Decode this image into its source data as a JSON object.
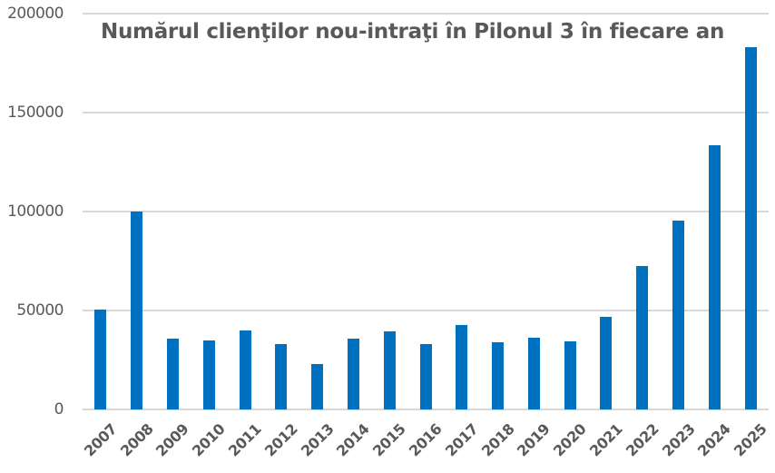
{
  "chart_data": {
    "type": "bar",
    "title": "Numărul clienţilor nou-intraţi în Pilonul 3 în fiecare an",
    "xlabel": "",
    "ylabel": "",
    "ylim": [
      0,
      200000
    ],
    "yticks": [
      "0",
      "50000",
      "100000",
      "150000",
      "200000"
    ],
    "grid": true,
    "legend": null,
    "bar_color": "#0070C0",
    "categories": [
      "2007",
      "2008",
      "2009",
      "2010",
      "2011",
      "2012",
      "2013",
      "2014",
      "2015",
      "2016",
      "2017",
      "2018",
      "2019",
      "2020",
      "2021",
      "2022",
      "2023",
      "2024",
      "2025"
    ],
    "values": [
      50600,
      100000,
      36000,
      34700,
      39900,
      33000,
      23100,
      36000,
      39500,
      33000,
      42700,
      34100,
      36400,
      34600,
      47000,
      72600,
      95400,
      133500,
      183100
    ]
  }
}
